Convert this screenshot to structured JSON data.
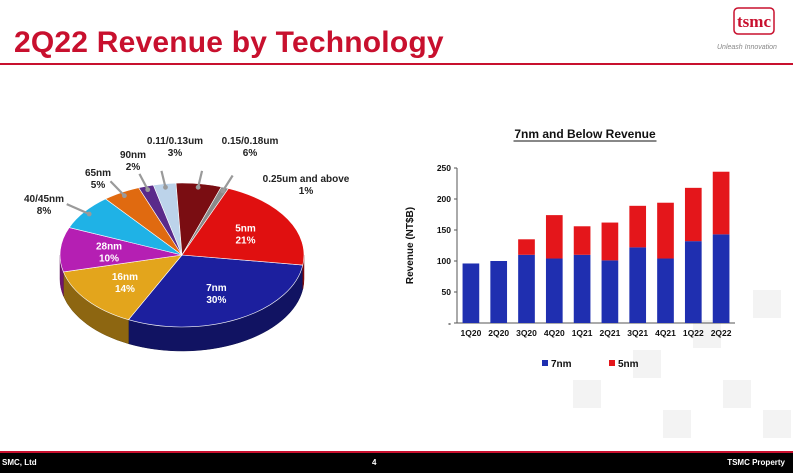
{
  "slide": {
    "title": "2Q22 Revenue by Technology",
    "logo_text": "tsmc",
    "tagline": "Unleash Innovation",
    "footer_left": "SMC, Ltd",
    "footer_center": "4",
    "footer_right": "TSMC Property"
  },
  "colors": {
    "brand_red": "#c8102e",
    "n7": "#1f2fb0",
    "n5": "#e4161b"
  },
  "chart_data": [
    {
      "type": "pie",
      "title": "",
      "slices": [
        {
          "label": "7nm",
          "value": 30,
          "pct_label": "30%",
          "color": "#1c1f9e"
        },
        {
          "label": "16nm",
          "value": 14,
          "pct_label": "14%",
          "color": "#e3a51c"
        },
        {
          "label": "28nm",
          "value": 10,
          "pct_label": "10%",
          "color": "#b51fb3"
        },
        {
          "label": "40/45nm",
          "value": 8,
          "pct_label": "8%",
          "color": "#1fb2e6"
        },
        {
          "label": "65nm",
          "value": 5,
          "pct_label": "5%",
          "color": "#e06a10"
        },
        {
          "label": "90nm",
          "value": 2,
          "pct_label": "2%",
          "color": "#5a2a8a"
        },
        {
          "label": "0.11/0.13um",
          "value": 3,
          "pct_label": "3%",
          "color": "#bcd3ea"
        },
        {
          "label": "0.15/0.18um",
          "value": 6,
          "pct_label": "6%",
          "color": "#7a0d12"
        },
        {
          "label": "0.25um and above",
          "value": 1,
          "pct_label": "1%",
          "color": "#8a8a8a"
        },
        {
          "label": "5nm",
          "value": 21,
          "pct_label": "21%",
          "color": "#e01010"
        }
      ]
    },
    {
      "type": "bar",
      "stacked": true,
      "title": "7nm and Below Revenue",
      "ylabel": "Revenue (NT$B)",
      "xlabel": "",
      "categories": [
        "1Q20",
        "2Q20",
        "3Q20",
        "4Q20",
        "1Q21",
        "2Q21",
        "3Q21",
        "4Q21",
        "1Q22",
        "2Q22"
      ],
      "series": [
        {
          "name": "7nm",
          "color": "#1f2fb0",
          "values": [
            96,
            100,
            110,
            104,
            110,
            101,
            122,
            104,
            132,
            143
          ]
        },
        {
          "name": "5nm",
          "color": "#e4161b",
          "values": [
            0,
            0,
            25,
            70,
            46,
            61,
            67,
            90,
            86,
            101
          ]
        }
      ],
      "ylim": [
        0,
        250
      ],
      "yticks": [
        "-",
        "50",
        "100",
        "150",
        "200",
        "250"
      ],
      "legend": "bottom"
    }
  ]
}
